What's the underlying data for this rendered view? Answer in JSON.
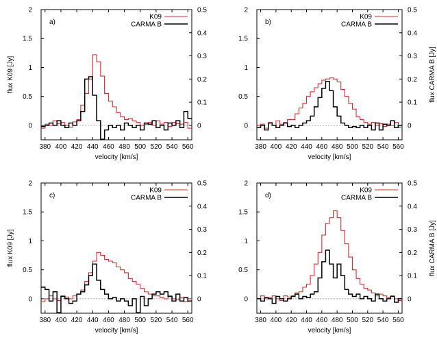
{
  "chart_data": [
    {
      "type": "line",
      "panel_label": "a)",
      "xlabel": "velocity [km/s]",
      "ylabel_left": "flux K09 [Jy]",
      "ylabel_right": "",
      "xlim": [
        375,
        565
      ],
      "ylim_left": [
        -0.25,
        2
      ],
      "ylim_right": [
        -0.0625,
        0.5
      ],
      "x_ticks": [
        380,
        400,
        420,
        440,
        460,
        480,
        500,
        520,
        540,
        560
      ],
      "y_ticks_left": [
        0,
        0.5,
        1,
        1.5,
        2
      ],
      "y_ticks_right": [
        0,
        0.1,
        0.2,
        0.3,
        0.4,
        0.5
      ],
      "zero_line": true,
      "legend": "top-right",
      "series": [
        {
          "name": "K09",
          "axis": "left",
          "color": "#e8262a",
          "step": true,
          "bin_width": 5,
          "x": [
            375,
            380,
            385,
            390,
            395,
            400,
            405,
            410,
            415,
            420,
            425,
            430,
            435,
            440,
            445,
            450,
            455,
            460,
            465,
            470,
            475,
            480,
            485,
            490,
            495,
            500,
            505,
            510,
            515,
            520,
            525,
            530,
            535,
            540,
            545,
            550,
            555,
            560
          ],
          "y": [
            -0.05,
            0.02,
            0.0,
            0.08,
            0.03,
            0.05,
            0.0,
            -0.03,
            0.06,
            0.1,
            0.35,
            0.55,
            0.8,
            1.22,
            1.1,
            0.85,
            0.55,
            0.42,
            0.32,
            0.22,
            0.15,
            0.1,
            0.12,
            0.08,
            0.05,
            0.0,
            0.02,
            0.05,
            0.0,
            0.08,
            0.02,
            0.05,
            -0.02,
            0.05,
            0.03,
            0.02,
            0.05,
            -0.05
          ]
        },
        {
          "name": "CARMA B",
          "axis": "right",
          "color": "#000000",
          "step": true,
          "bin_width": 5,
          "x": [
            375,
            380,
            385,
            390,
            395,
            400,
            405,
            410,
            415,
            420,
            425,
            430,
            435,
            440,
            445,
            450,
            455,
            460,
            465,
            470,
            475,
            480,
            485,
            490,
            495,
            500,
            505,
            510,
            515,
            520,
            525,
            530,
            535,
            540,
            545,
            550,
            555,
            560
          ],
          "y": [
            -0.005,
            0.0,
            0.01,
            0.0,
            0.02,
            0.0,
            -0.01,
            0.01,
            0.0,
            0.02,
            0.06,
            0.2,
            0.21,
            0.13,
            0.02,
            -0.06,
            -0.02,
            0.0,
            -0.01,
            0.0,
            -0.02,
            0.01,
            0.0,
            -0.01,
            0.0,
            -0.02,
            0.01,
            0.005,
            0.02,
            -0.01,
            0.0,
            -0.02,
            0.01,
            0.0,
            0.02,
            -0.01,
            0.06,
            0.03
          ]
        }
      ]
    },
    {
      "type": "line",
      "panel_label": "b)",
      "xlabel": "velocity [km/s]",
      "ylabel_left": "",
      "ylabel_right": "flux CARMA B [Jy]",
      "xlim": [
        375,
        565
      ],
      "ylim_left": [
        -0.25,
        2
      ],
      "ylim_right": [
        -0.0625,
        0.5
      ],
      "x_ticks": [
        380,
        400,
        420,
        440,
        460,
        480,
        500,
        520,
        540,
        560
      ],
      "y_ticks_left": [
        0,
        0.5,
        1,
        1.5,
        2
      ],
      "y_ticks_right": [
        0,
        0.1,
        0.2,
        0.3,
        0.4,
        0.5
      ],
      "zero_line": true,
      "legend": "top-right",
      "series": [
        {
          "name": "K09",
          "axis": "left",
          "color": "#e8262a",
          "step": true,
          "bin_width": 5,
          "x": [
            375,
            380,
            385,
            390,
            395,
            400,
            405,
            410,
            415,
            420,
            425,
            430,
            435,
            440,
            445,
            450,
            455,
            460,
            465,
            470,
            475,
            480,
            485,
            490,
            495,
            500,
            505,
            510,
            515,
            520,
            525,
            530,
            535,
            540,
            545,
            550,
            555,
            560
          ],
          "y": [
            0.0,
            0.02,
            -0.05,
            0.05,
            0.0,
            0.08,
            0.02,
            0.05,
            0.1,
            0.1,
            0.2,
            0.3,
            0.38,
            0.5,
            0.58,
            0.65,
            0.72,
            0.78,
            0.8,
            0.82,
            0.8,
            0.75,
            0.62,
            0.5,
            0.38,
            0.28,
            0.15,
            0.1,
            0.05,
            0.02,
            0.05,
            0.0,
            0.03,
            -0.02,
            0.02,
            0.0,
            0.05,
            -0.03
          ]
        },
        {
          "name": "CARMA B",
          "axis": "right",
          "color": "#000000",
          "step": true,
          "bin_width": 5,
          "x": [
            375,
            380,
            385,
            390,
            395,
            400,
            405,
            410,
            415,
            420,
            425,
            430,
            435,
            440,
            445,
            450,
            455,
            460,
            465,
            470,
            475,
            480,
            485,
            490,
            495,
            500,
            505,
            510,
            515,
            520,
            525,
            530,
            535,
            540,
            545,
            550,
            555,
            560
          ],
          "y": [
            -0.01,
            0.0,
            -0.02,
            0.01,
            0.0,
            -0.01,
            0.0,
            0.01,
            -0.005,
            0.0,
            -0.01,
            0.0,
            0.01,
            0.02,
            0.04,
            0.08,
            0.12,
            0.16,
            0.19,
            0.15,
            0.08,
            0.04,
            0.01,
            0.0,
            -0.01,
            -0.005,
            -0.01,
            0.0,
            -0.01,
            0.0,
            -0.02,
            0.01,
            -0.02,
            0.005,
            0.0,
            0.02,
            -0.01,
            0.0
          ]
        }
      ]
    },
    {
      "type": "line",
      "panel_label": "c)",
      "xlabel": "velocity [km/s]",
      "ylabel_left": "flux K09 [Jy]",
      "ylabel_right": "",
      "xlim": [
        375,
        565
      ],
      "ylim_left": [
        -0.25,
        2
      ],
      "ylim_right": [
        -0.0625,
        0.5
      ],
      "x_ticks": [
        380,
        400,
        420,
        440,
        460,
        480,
        500,
        520,
        540,
        560
      ],
      "y_ticks_left": [
        0,
        0.5,
        1,
        1.5,
        2
      ],
      "y_ticks_right": [
        0,
        0.1,
        0.2,
        0.3,
        0.4,
        0.5
      ],
      "zero_line": true,
      "legend": "top-right",
      "series": [
        {
          "name": "K09",
          "axis": "left",
          "color": "#e8262a",
          "step": true,
          "bin_width": 5,
          "x": [
            375,
            380,
            385,
            390,
            395,
            400,
            405,
            410,
            415,
            420,
            425,
            430,
            435,
            440,
            445,
            450,
            455,
            460,
            465,
            470,
            475,
            480,
            485,
            490,
            495,
            500,
            505,
            510,
            515,
            520,
            525,
            530,
            535,
            540,
            545,
            550,
            555,
            560
          ],
          "y": [
            -0.05,
            0.0,
            0.05,
            0.0,
            -0.03,
            0.05,
            0.03,
            0.0,
            0.05,
            0.08,
            0.15,
            0.3,
            0.45,
            0.65,
            0.8,
            0.75,
            0.68,
            0.65,
            0.62,
            0.55,
            0.5,
            0.45,
            0.35,
            0.3,
            0.25,
            0.18,
            0.12,
            0.08,
            0.05,
            0.05,
            0.02,
            0.0,
            0.05,
            0.0,
            -0.02,
            0.02,
            -0.05,
            0.0
          ]
        },
        {
          "name": "CARMA B",
          "axis": "right",
          "color": "#000000",
          "step": true,
          "bin_width": 5,
          "x": [
            375,
            380,
            385,
            390,
            395,
            400,
            405,
            410,
            415,
            420,
            425,
            430,
            435,
            440,
            445,
            450,
            455,
            460,
            465,
            470,
            475,
            480,
            485,
            490,
            495,
            500,
            505,
            510,
            515,
            520,
            525,
            530,
            535,
            540,
            545,
            550,
            555,
            560
          ],
          "y": [
            0.05,
            0.04,
            -0.01,
            0.03,
            -0.06,
            0.01,
            0.0,
            -0.02,
            -0.01,
            0.02,
            0.03,
            0.06,
            0.1,
            0.15,
            0.08,
            0.04,
            0.02,
            0.0,
            0.005,
            -0.01,
            0.0,
            -0.01,
            -0.03,
            0.0,
            -0.06,
            0.01,
            -0.03,
            0.0,
            0.02,
            0.03,
            0.02,
            0.03,
            0.01,
            -0.01,
            0.02,
            -0.01,
            0.005,
            -0.01
          ]
        }
      ]
    },
    {
      "type": "line",
      "panel_label": "d)",
      "xlabel": "velocity [km/s]",
      "ylabel_left": "",
      "ylabel_right": "flux CARMA B [Jy]",
      "xlim": [
        375,
        565
      ],
      "ylim_left": [
        -0.25,
        2
      ],
      "ylim_right": [
        -0.0625,
        0.5
      ],
      "x_ticks": [
        380,
        400,
        420,
        440,
        460,
        480,
        500,
        520,
        540,
        560
      ],
      "y_ticks_left": [
        0,
        0.5,
        1,
        1.5,
        2
      ],
      "y_ticks_right": [
        0,
        0.1,
        0.2,
        0.3,
        0.4,
        0.5
      ],
      "zero_line": true,
      "legend": "top-right",
      "series": [
        {
          "name": "K09",
          "axis": "left",
          "color": "#e8262a",
          "step": true,
          "bin_width": 5,
          "x": [
            375,
            380,
            385,
            390,
            395,
            400,
            405,
            410,
            415,
            420,
            425,
            430,
            435,
            440,
            445,
            450,
            455,
            460,
            465,
            470,
            475,
            480,
            485,
            490,
            495,
            500,
            505,
            510,
            515,
            520,
            525,
            530,
            535,
            540,
            545,
            550,
            555,
            560
          ],
          "y": [
            0.0,
            0.05,
            0.0,
            0.02,
            0.05,
            0.0,
            -0.03,
            0.05,
            0.03,
            0.05,
            0.1,
            0.12,
            0.2,
            0.25,
            0.4,
            0.6,
            0.8,
            1.1,
            1.3,
            1.4,
            1.52,
            1.4,
            1.18,
            0.95,
            0.72,
            0.5,
            0.35,
            0.25,
            0.18,
            0.15,
            0.1,
            0.05,
            0.08,
            0.05,
            0.02,
            0.05,
            0.0,
            -0.03
          ]
        },
        {
          "name": "CARMA B",
          "axis": "right",
          "color": "#000000",
          "step": true,
          "bin_width": 5,
          "x": [
            375,
            380,
            385,
            390,
            395,
            400,
            405,
            410,
            415,
            420,
            425,
            430,
            435,
            440,
            445,
            450,
            455,
            460,
            465,
            470,
            475,
            480,
            485,
            490,
            495,
            500,
            505,
            510,
            515,
            520,
            525,
            530,
            535,
            540,
            545,
            550,
            555,
            560
          ],
          "y": [
            0.0,
            -0.01,
            0.005,
            0.0,
            -0.02,
            0.01,
            0.0,
            -0.01,
            0.0,
            0.01,
            0.02,
            0.0,
            0.01,
            0.005,
            0.02,
            0.03,
            0.09,
            0.16,
            0.21,
            0.15,
            0.09,
            0.15,
            0.1,
            0.04,
            0.02,
            0.01,
            0.02,
            0.0,
            0.01,
            0.0,
            -0.01,
            0.02,
            0.0,
            -0.01,
            0.0,
            0.01,
            -0.015,
            0.0
          ]
        }
      ]
    }
  ]
}
